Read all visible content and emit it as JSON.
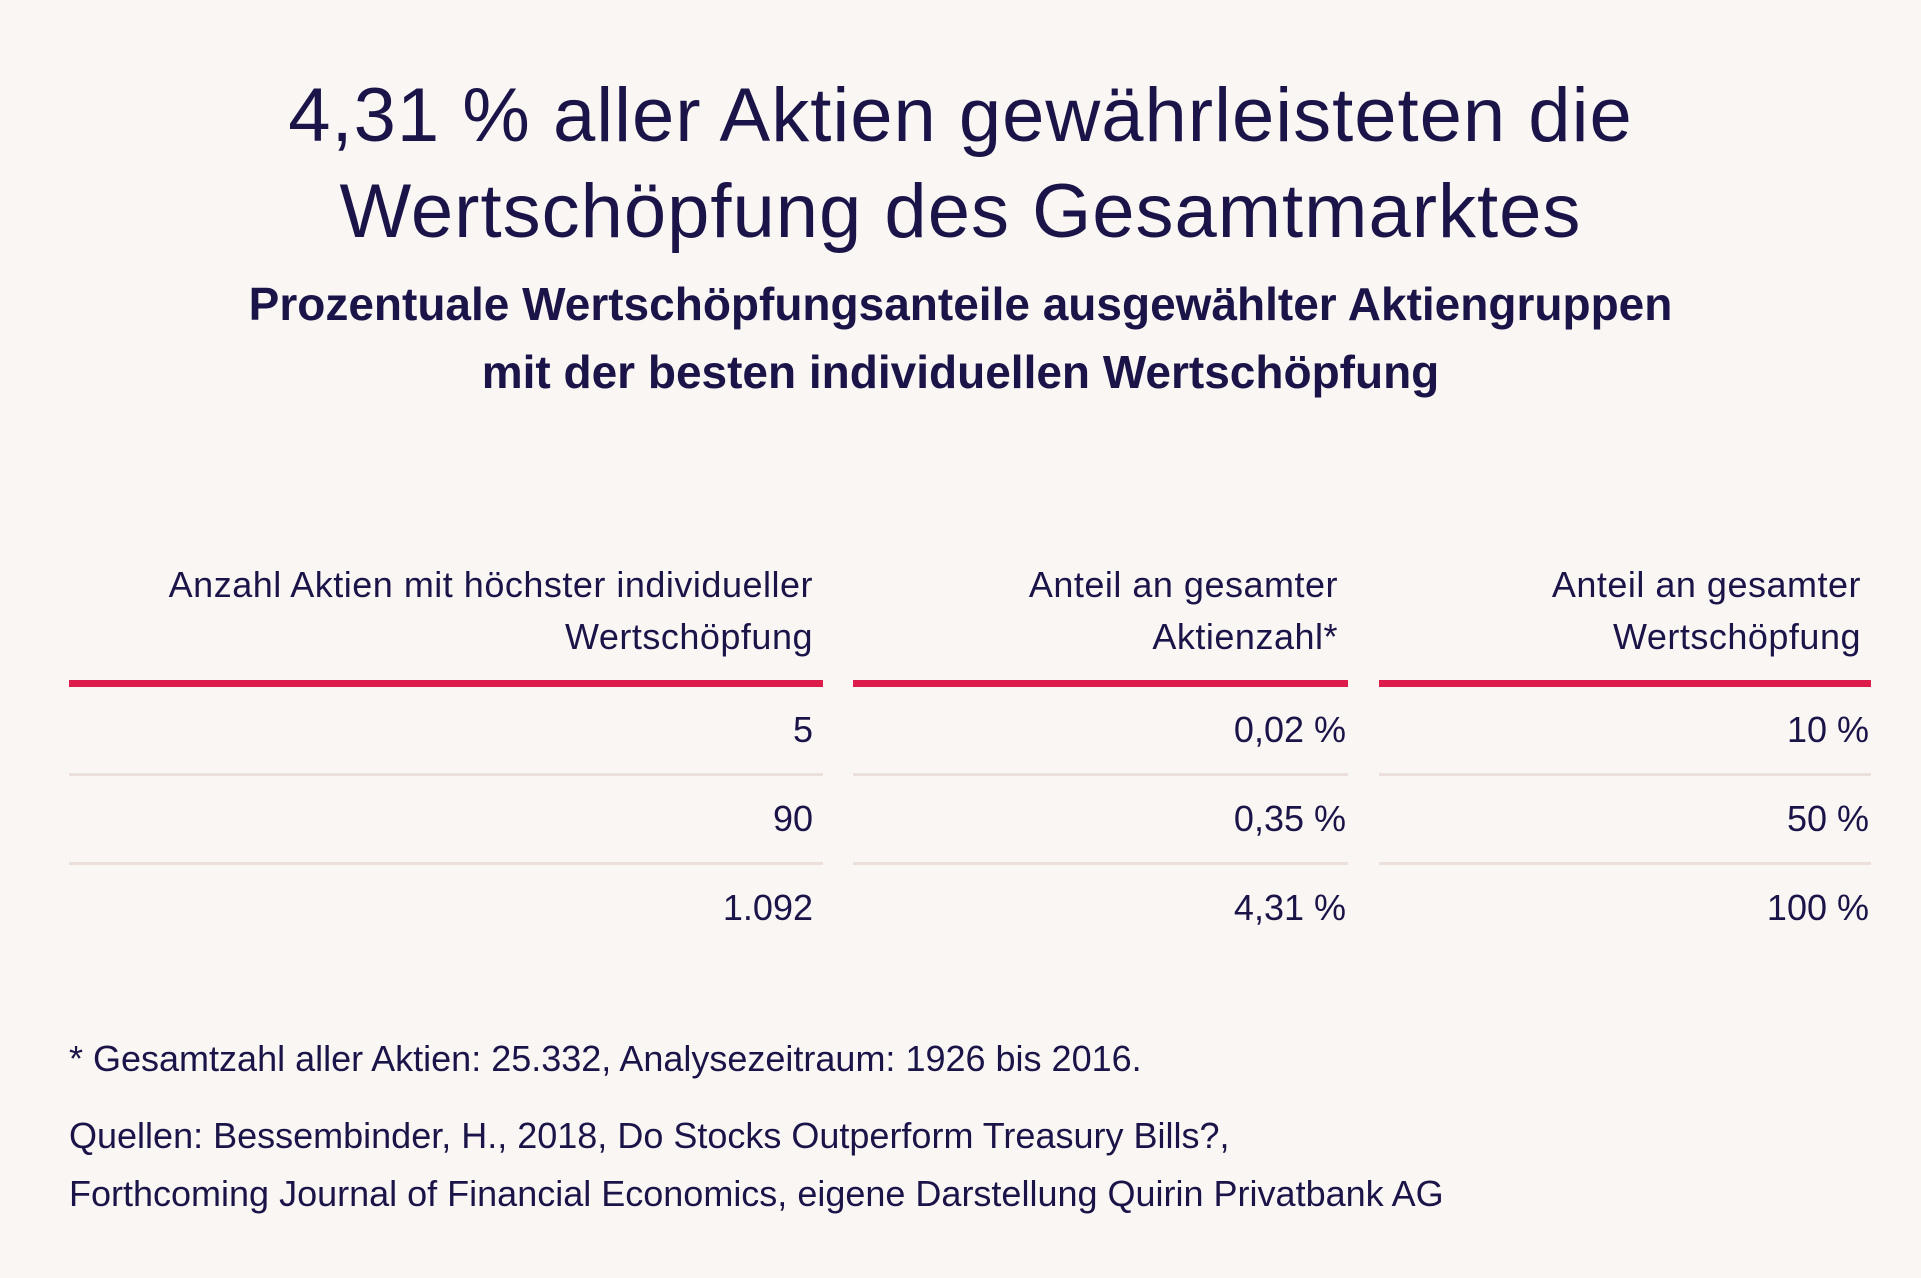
{
  "chart_data": {
    "type": "table",
    "title": [
      "4,31 % aller Aktien gewährleisteten die",
      "Wertschöpfung des Gesamtmarktes"
    ],
    "subtitle": [
      "Prozentuale Wertschöpfungsanteile ausgewählter Aktiengruppen",
      "mit der besten individuellen Wertschöpfung"
    ],
    "columns": [
      [
        "Anzahl Aktien mit höchster individueller",
        "Wertschöpfung"
      ],
      [
        "Anteil an gesamter",
        "Aktienzahl*"
      ],
      [
        "Anteil an gesamter",
        "Wertschöpfung"
      ]
    ],
    "rows": [
      [
        "5",
        "0,02 %",
        "10 %"
      ],
      [
        "90",
        "0,35 %",
        "50 %"
      ],
      [
        "1.092",
        "4,31 %",
        "100 %"
      ]
    ],
    "footnote": "* Gesamtzahl aller Aktien: 25.332, Analysezeitraum: 1926 bis 2016.",
    "sources": [
      "Quellen: Bessembinder, H., 2018, Do Stocks Outperform Treasury Bills?,",
      "Forthcoming Journal of Financial Economics, eigene Darstellung Quirin Privatbank AG"
    ]
  },
  "colors": {
    "background": "#faf6f3",
    "text": "#1b1448",
    "accent_rule": "#dc1d4b",
    "row_separator": "#ebe0db"
  }
}
